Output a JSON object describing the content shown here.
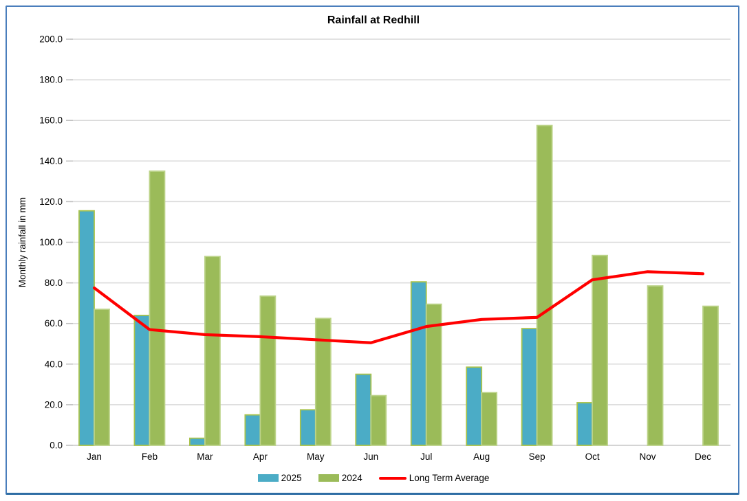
{
  "chart_data": {
    "type": "bar",
    "title": "Rainfall at Redhill",
    "ylabel": "Monthly rainfall in mm",
    "xlabel": "",
    "ylim": [
      0,
      200
    ],
    "ytick_step": 20,
    "ytick_decimals": 1,
    "grid": true,
    "legend_position": "bottom",
    "categories": [
      "Jan",
      "Feb",
      "Mar",
      "Apr",
      "May",
      "Jun",
      "Jul",
      "Aug",
      "Sep",
      "Oct",
      "Nov",
      "Dec"
    ],
    "series": [
      {
        "name": "2025",
        "type": "bar",
        "color": "#4bacc6",
        "border_color": "#a9c34c",
        "values": [
          115.5,
          64.0,
          3.5,
          15.0,
          17.5,
          35.0,
          80.5,
          38.5,
          57.5,
          21.0,
          null,
          null
        ]
      },
      {
        "name": "2024",
        "type": "bar",
        "color": "#9bbb59",
        "border_color": "#bcd389",
        "values": [
          67.0,
          135.0,
          93.0,
          73.5,
          62.5,
          24.5,
          69.5,
          26.0,
          157.5,
          93.5,
          78.5,
          68.5
        ]
      },
      {
        "name": "Long Term Average",
        "type": "line",
        "color": "#ff0000",
        "values": [
          77.5,
          57.0,
          54.5,
          53.5,
          52.0,
          50.5,
          58.5,
          62.0,
          63.0,
          81.5,
          85.5,
          84.5
        ]
      }
    ],
    "colors": {
      "gridline": "#d9d9d9",
      "axis_line": "#c6c6c6",
      "tick": "#bfbfbf",
      "text": "#000000",
      "frame_border": "#4a7ebc"
    }
  }
}
